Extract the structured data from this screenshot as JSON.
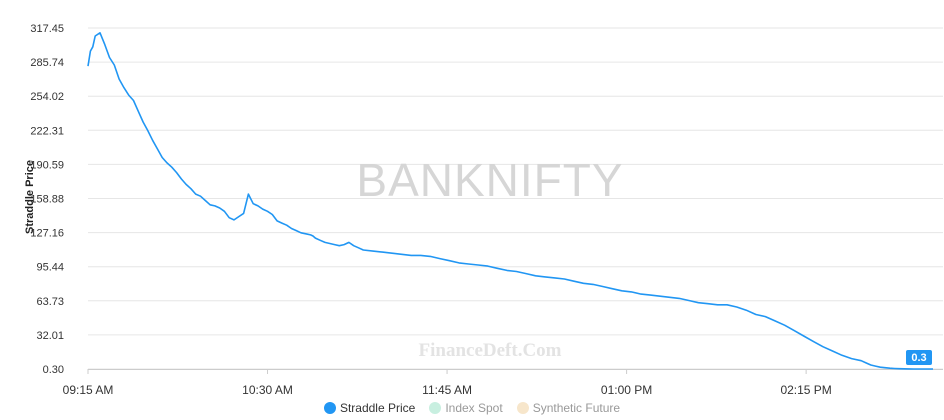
{
  "chart_data": {
    "type": "line",
    "watermark": "BANKNIFTY",
    "credit": "FinanceDeft.Com",
    "ylabel": "Straddle Price",
    "yticks": [
      "0.30",
      "32.01",
      "63.73",
      "95.44",
      "127.16",
      "158.88",
      "190.59",
      "222.31",
      "254.02",
      "285.74",
      "317.45"
    ],
    "ylim": [
      0.3,
      317.45
    ],
    "xticks": [
      "09:15 AM",
      "10:30 AM",
      "11:45 AM",
      "01:00 PM",
      "02:15 PM"
    ],
    "xlim": [
      "09:15",
      "15:08"
    ],
    "last_value_label": "0.3",
    "grid": true,
    "series": [
      {
        "name": "Straddle Price",
        "color": "#2196f3",
        "x": [
          "09:15",
          "09:16",
          "09:17",
          "09:18",
          "09:20",
          "09:22",
          "09:24",
          "09:26",
          "09:28",
          "09:30",
          "09:32",
          "09:34",
          "09:36",
          "09:38",
          "09:40",
          "09:42",
          "09:44",
          "09:46",
          "09:48",
          "09:50",
          "09:52",
          "09:54",
          "09:56",
          "09:58",
          "10:00",
          "10:02",
          "10:04",
          "10:06",
          "10:08",
          "10:10",
          "10:12",
          "10:14",
          "10:16",
          "10:18",
          "10:20",
          "10:22",
          "10:24",
          "10:26",
          "10:28",
          "10:30",
          "10:32",
          "10:34",
          "10:36",
          "10:38",
          "10:40",
          "10:42",
          "10:44",
          "10:46",
          "10:48",
          "10:49",
          "10:50",
          "10:52",
          "10:54",
          "10:56",
          "10:58",
          "11:00",
          "11:02",
          "11:04",
          "11:06",
          "11:08",
          "11:10",
          "11:14",
          "11:18",
          "11:22",
          "11:26",
          "11:30",
          "11:34",
          "11:38",
          "11:42",
          "11:46",
          "11:50",
          "11:54",
          "11:58",
          "12:02",
          "12:06",
          "12:10",
          "12:14",
          "12:18",
          "12:22",
          "12:26",
          "12:30",
          "12:34",
          "12:38",
          "12:42",
          "12:46",
          "12:50",
          "12:54",
          "12:58",
          "13:02",
          "13:06",
          "13:10",
          "13:14",
          "13:18",
          "13:22",
          "13:26",
          "13:30",
          "13:34",
          "13:38",
          "13:42",
          "13:46",
          "13:50",
          "13:54",
          "13:58",
          "14:02",
          "14:06",
          "14:10",
          "14:14",
          "14:18",
          "14:22",
          "14:26",
          "14:30",
          "14:34",
          "14:38",
          "14:40",
          "14:42",
          "14:44",
          "14:46",
          "14:48",
          "14:50",
          "14:52",
          "14:54",
          "14:56",
          "14:58",
          "15:00",
          "15:02",
          "15:04",
          "15:06",
          "15:08"
        ],
        "values": [
          282,
          296,
          300,
          310,
          313,
          302,
          290,
          283,
          270,
          262,
          255,
          250,
          240,
          230,
          222,
          213,
          205,
          197,
          192,
          188,
          183,
          177,
          172,
          168,
          163,
          161,
          157,
          153,
          152,
          150,
          147,
          141,
          139,
          142,
          145,
          163,
          154,
          152,
          149,
          147,
          144,
          138,
          136,
          134,
          131,
          129,
          127,
          126,
          125,
          124,
          122,
          120,
          118,
          117,
          116,
          115,
          116,
          118,
          115,
          113,
          111,
          110,
          109,
          108,
          107,
          106,
          106,
          105,
          103,
          101,
          99,
          98,
          97,
          96,
          94,
          92,
          91,
          89,
          87,
          86,
          85,
          84,
          82,
          80,
          79,
          77,
          75,
          73,
          72,
          70,
          69,
          68,
          67,
          66,
          64,
          62,
          61,
          60,
          60,
          58,
          55,
          51,
          49,
          45,
          41,
          36,
          31,
          26,
          21,
          17,
          13,
          10,
          8,
          6,
          4,
          3,
          2,
          1.5,
          1,
          0.8,
          0.6,
          0.5,
          0.4,
          0.3,
          0.3,
          0.3,
          0.3,
          0.3
        ]
      }
    ]
  },
  "legend": [
    {
      "label": "Straddle Price",
      "color": "#2196f3",
      "active": true
    },
    {
      "label": "Index Spot",
      "color": "#c8efe0",
      "active": false
    },
    {
      "label": "Synthetic Future",
      "color": "#f7e6cb",
      "active": false
    }
  ]
}
